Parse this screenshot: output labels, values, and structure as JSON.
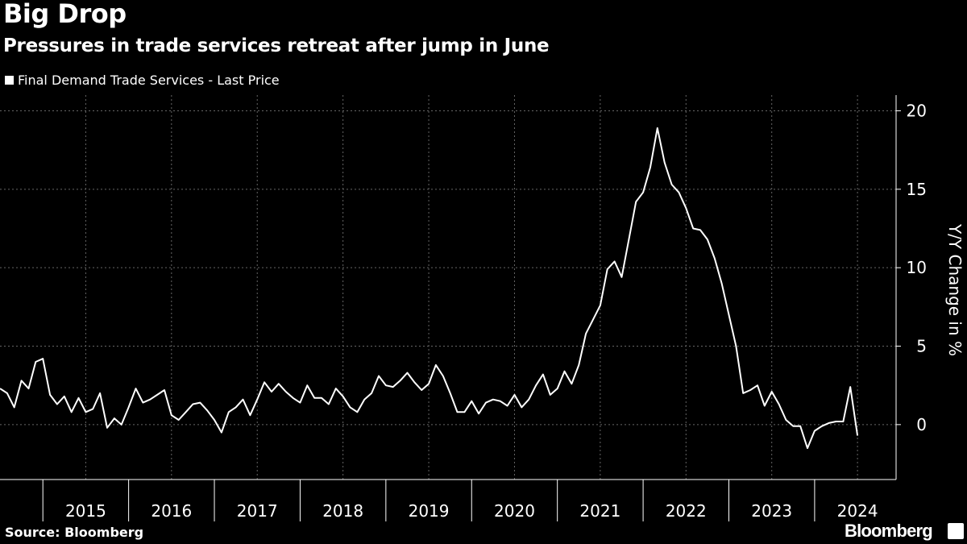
{
  "title": "Big Drop",
  "subtitle": "Pressures in trade services retreat after jump in June",
  "legend": "Final Demand Trade Services - Last Price",
  "source": "Source: Bloomberg",
  "logo": "Bloomberg",
  "colors": {
    "background": "#000000",
    "line": "#ffffff",
    "grid": "#666666"
  },
  "chart_data": {
    "type": "line",
    "title": "Big Drop",
    "ylabel": "Y/Y Change in %",
    "xlabel": "",
    "ylim": [
      -3.5,
      21
    ],
    "yticks": [
      0,
      5,
      10,
      15,
      20
    ],
    "xlim": [
      2014.5,
      2024.95
    ],
    "xticks": [
      2015,
      2016,
      2017,
      2018,
      2019,
      2020,
      2021,
      2022,
      2023,
      2024
    ],
    "grid": true,
    "y_axis_side": "right",
    "series": [
      {
        "name": "Final Demand Trade Services - Last Price",
        "frequency": "monthly",
        "start": "2014-07",
        "values": [
          2.3,
          2.0,
          1.1,
          2.8,
          2.3,
          4.0,
          4.2,
          1.9,
          1.3,
          1.8,
          0.8,
          1.7,
          0.8,
          1.0,
          2.0,
          -0.2,
          0.4,
          0.0,
          1.1,
          2.3,
          1.4,
          1.6,
          1.9,
          2.2,
          0.6,
          0.3,
          0.8,
          1.3,
          1.4,
          0.9,
          0.3,
          -0.5,
          0.8,
          1.1,
          1.6,
          0.6,
          1.6,
          2.7,
          2.1,
          2.6,
          2.1,
          1.7,
          1.4,
          2.5,
          1.7,
          1.7,
          1.3,
          2.3,
          1.8,
          1.1,
          0.8,
          1.6,
          2.0,
          3.1,
          2.5,
          2.4,
          2.8,
          3.3,
          2.7,
          2.2,
          2.6,
          3.8,
          3.1,
          2.0,
          0.8,
          0.8,
          1.5,
          0.7,
          1.4,
          1.6,
          1.5,
          1.2,
          1.9,
          1.1,
          1.6,
          2.5,
          3.2,
          1.9,
          2.3,
          3.4,
          2.6,
          3.8,
          5.8,
          6.7,
          7.6,
          9.9,
          10.4,
          9.4,
          11.8,
          14.2,
          14.8,
          16.4,
          18.9,
          16.7,
          15.3,
          14.8,
          13.8,
          12.5,
          12.4,
          11.8,
          10.6,
          9.0,
          7.0,
          5.0,
          2.0,
          2.2,
          2.5,
          1.2,
          2.1,
          1.3,
          0.3,
          -0.1,
          -0.1,
          -1.5,
          -0.4,
          -0.1,
          0.1,
          0.2,
          0.2,
          2.4,
          -0.7
        ]
      }
    ]
  }
}
